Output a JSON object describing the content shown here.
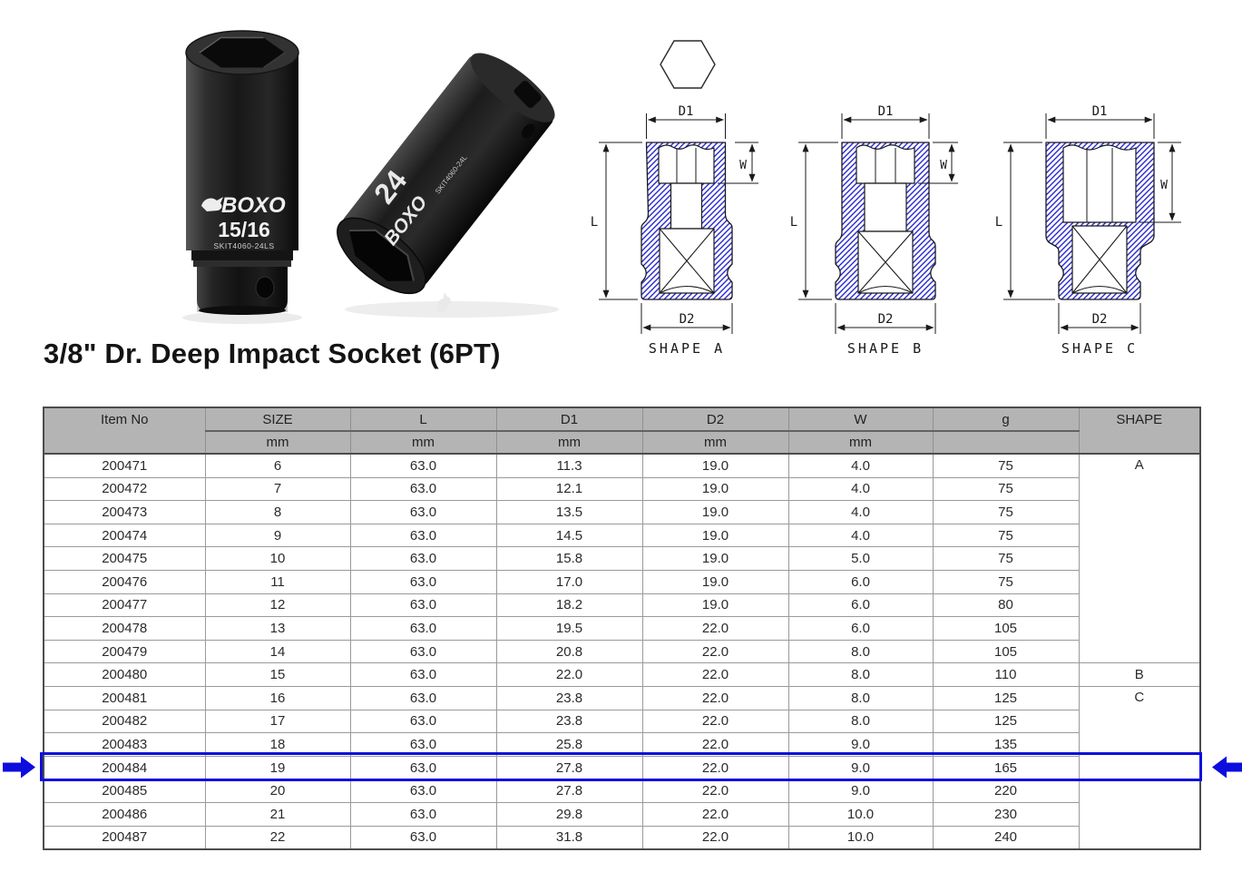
{
  "page": {
    "title": "3/8\" Dr. Deep Impact Socket (6PT)"
  },
  "photo": {
    "brand": "BOXO",
    "socket_left": {
      "size_marking": "15/16",
      "code_marking": "SKIT4060-24LS"
    },
    "socket_right": {
      "size_marking": "24",
      "code_marking": "SKIT4060-24L"
    }
  },
  "diagrams": {
    "labels": {
      "d1": "D1",
      "d2": "D2",
      "l": "L",
      "w": "W"
    },
    "captions": [
      "SHAPE A",
      "SHAPE B",
      "SHAPE C"
    ],
    "hatch_color": "#2b2bd0"
  },
  "table": {
    "columns": [
      {
        "label": "Item No",
        "unit": ""
      },
      {
        "label": "SIZE",
        "unit": "mm"
      },
      {
        "label": "L",
        "unit": "mm"
      },
      {
        "label": "D1",
        "unit": "mm"
      },
      {
        "label": "D2",
        "unit": "mm"
      },
      {
        "label": "W",
        "unit": "mm"
      },
      {
        "label": "g",
        "unit": ""
      },
      {
        "label": "SHAPE",
        "unit": ""
      }
    ],
    "rows": [
      {
        "item": "200471",
        "size": "6",
        "l": "63.0",
        "d1": "11.3",
        "d2": "19.0",
        "w": "4.0",
        "g": "75",
        "shape": "A"
      },
      {
        "item": "200472",
        "size": "7",
        "l": "63.0",
        "d1": "12.1",
        "d2": "19.0",
        "w": "4.0",
        "g": "75",
        "shape": ""
      },
      {
        "item": "200473",
        "size": "8",
        "l": "63.0",
        "d1": "13.5",
        "d2": "19.0",
        "w": "4.0",
        "g": "75",
        "shape": ""
      },
      {
        "item": "200474",
        "size": "9",
        "l": "63.0",
        "d1": "14.5",
        "d2": "19.0",
        "w": "4.0",
        "g": "75",
        "shape": ""
      },
      {
        "item": "200475",
        "size": "10",
        "l": "63.0",
        "d1": "15.8",
        "d2": "19.0",
        "w": "5.0",
        "g": "75",
        "shape": ""
      },
      {
        "item": "200476",
        "size": "11",
        "l": "63.0",
        "d1": "17.0",
        "d2": "19.0",
        "w": "6.0",
        "g": "75",
        "shape": ""
      },
      {
        "item": "200477",
        "size": "12",
        "l": "63.0",
        "d1": "18.2",
        "d2": "19.0",
        "w": "6.0",
        "g": "80",
        "shape": ""
      },
      {
        "item": "200478",
        "size": "13",
        "l": "63.0",
        "d1": "19.5",
        "d2": "22.0",
        "w": "6.0",
        "g": "105",
        "shape": ""
      },
      {
        "item": "200479",
        "size": "14",
        "l": "63.0",
        "d1": "20.8",
        "d2": "22.0",
        "w": "8.0",
        "g": "105",
        "shape": ""
      },
      {
        "item": "200480",
        "size": "15",
        "l": "63.0",
        "d1": "22.0",
        "d2": "22.0",
        "w": "8.0",
        "g": "110",
        "shape": "B"
      },
      {
        "item": "200481",
        "size": "16",
        "l": "63.0",
        "d1": "23.8",
        "d2": "22.0",
        "w": "8.0",
        "g": "125",
        "shape": "C"
      },
      {
        "item": "200482",
        "size": "17",
        "l": "63.0",
        "d1": "23.8",
        "d2": "22.0",
        "w": "8.0",
        "g": "125",
        "shape": ""
      },
      {
        "item": "200483",
        "size": "18",
        "l": "63.0",
        "d1": "25.8",
        "d2": "22.0",
        "w": "9.0",
        "g": "135",
        "shape": ""
      },
      {
        "item": "200484",
        "size": "19",
        "l": "63.0",
        "d1": "27.8",
        "d2": "22.0",
        "w": "9.0",
        "g": "165",
        "shape": ""
      },
      {
        "item": "200485",
        "size": "20",
        "l": "63.0",
        "d1": "27.8",
        "d2": "22.0",
        "w": "9.0",
        "g": "220",
        "shape": ""
      },
      {
        "item": "200486",
        "size": "21",
        "l": "63.0",
        "d1": "29.8",
        "d2": "22.0",
        "w": "10.0",
        "g": "230",
        "shape": ""
      },
      {
        "item": "200487",
        "size": "22",
        "l": "63.0",
        "d1": "31.8",
        "d2": "22.0",
        "w": "10.0",
        "g": "240",
        "shape": ""
      }
    ],
    "highlight": {
      "item": "200484",
      "color": "#0d0ddd"
    }
  }
}
